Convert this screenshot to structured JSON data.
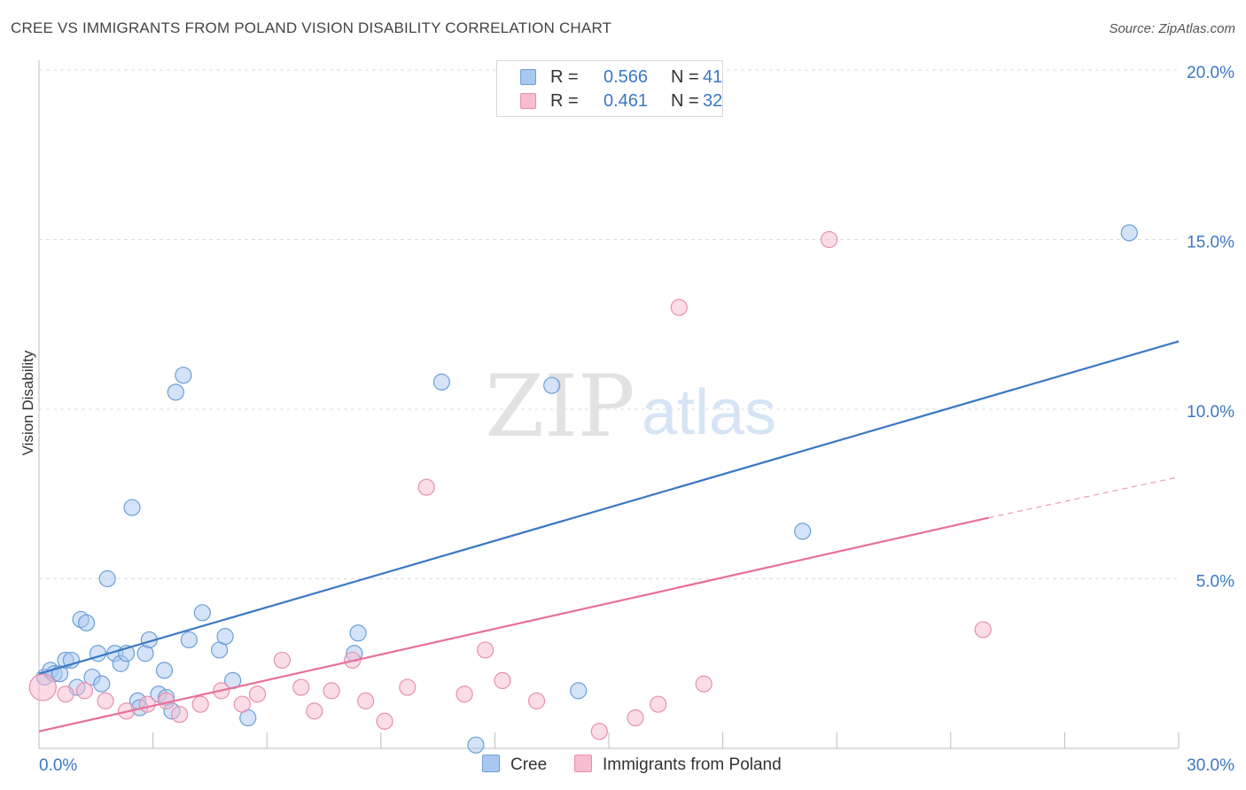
{
  "header": {
    "title": "CREE VS IMMIGRANTS FROM POLAND VISION DISABILITY CORRELATION CHART",
    "source": "Source: ZipAtlas.com"
  },
  "legend": {
    "series": [
      {
        "name": "Cree",
        "r_label": "R =",
        "r_value": "0.566",
        "n_label": "N =",
        "n_value": "41",
        "color": "#a9c8f0",
        "edge": "#6a9fd8"
      },
      {
        "name": "Immigrants from Poland",
        "r_label": "R =",
        "r_value": "0.461",
        "n_label": "N =",
        "n_value": "32",
        "color": "#f7bcd0",
        "edge": "#e88fae"
      }
    ]
  },
  "watermark": {
    "zip": "ZIP",
    "atlas": "atlas"
  },
  "chart_data": {
    "type": "scatter",
    "title": "CREE VS IMMIGRANTS FROM POLAND VISION DISABILITY CORRELATION CHART",
    "xlabel": "",
    "ylabel": "Vision Disability",
    "xlim": [
      0,
      30
    ],
    "ylim": [
      0,
      20
    ],
    "x_tick_labels": [
      "0.0%",
      "30.0%"
    ],
    "y_ticks": [
      5,
      10,
      15,
      20
    ],
    "y_tick_labels": [
      "5.0%",
      "10.0%",
      "15.0%",
      "20.0%"
    ],
    "grid": true,
    "legend_position": "top-center",
    "series": [
      {
        "name": "Cree",
        "color": "#3b78c3",
        "fill": "#a9c8f0",
        "points": [
          [
            0.15,
            2.1
          ],
          [
            0.3,
            2.3
          ],
          [
            0.4,
            2.2
          ],
          [
            0.55,
            2.2
          ],
          [
            0.7,
            2.6
          ],
          [
            0.85,
            2.6
          ],
          [
            1.0,
            1.8
          ],
          [
            1.1,
            3.8
          ],
          [
            1.25,
            3.7
          ],
          [
            1.4,
            2.1
          ],
          [
            1.55,
            2.8
          ],
          [
            1.65,
            1.9
          ],
          [
            1.8,
            5.0
          ],
          [
            2.0,
            2.8
          ],
          [
            2.15,
            2.5
          ],
          [
            2.3,
            2.8
          ],
          [
            2.45,
            7.1
          ],
          [
            2.6,
            1.4
          ],
          [
            2.65,
            1.2
          ],
          [
            2.8,
            2.8
          ],
          [
            2.9,
            3.2
          ],
          [
            3.15,
            1.6
          ],
          [
            3.3,
            2.3
          ],
          [
            3.35,
            1.5
          ],
          [
            3.5,
            1.1
          ],
          [
            3.6,
            10.5
          ],
          [
            3.8,
            11.0
          ],
          [
            3.95,
            3.2
          ],
          [
            4.3,
            4.0
          ],
          [
            4.75,
            2.9
          ],
          [
            4.9,
            3.3
          ],
          [
            5.1,
            2.0
          ],
          [
            5.5,
            0.9
          ],
          [
            8.3,
            2.8
          ],
          [
            8.4,
            3.4
          ],
          [
            10.6,
            10.8
          ],
          [
            11.5,
            0.1
          ],
          [
            13.5,
            10.7
          ],
          [
            14.2,
            1.7
          ],
          [
            20.1,
            6.4
          ],
          [
            28.7,
            15.2
          ]
        ],
        "trend": {
          "x": [
            0,
            30
          ],
          "y": [
            2.2,
            12.0
          ]
        }
      },
      {
        "name": "Immigrants from Poland",
        "color": "#e8709a",
        "fill": "#f7bcd0",
        "points": [
          [
            0.1,
            1.8
          ],
          [
            0.7,
            1.6
          ],
          [
            1.2,
            1.7
          ],
          [
            1.75,
            1.4
          ],
          [
            2.3,
            1.1
          ],
          [
            2.85,
            1.3
          ],
          [
            3.35,
            1.4
          ],
          [
            3.7,
            1.0
          ],
          [
            4.25,
            1.3
          ],
          [
            4.8,
            1.7
          ],
          [
            5.35,
            1.3
          ],
          [
            5.75,
            1.6
          ],
          [
            6.4,
            2.6
          ],
          [
            6.9,
            1.8
          ],
          [
            7.25,
            1.1
          ],
          [
            7.7,
            1.7
          ],
          [
            8.25,
            2.6
          ],
          [
            8.6,
            1.4
          ],
          [
            9.1,
            0.8
          ],
          [
            9.7,
            1.8
          ],
          [
            10.2,
            7.7
          ],
          [
            11.2,
            1.6
          ],
          [
            11.75,
            2.9
          ],
          [
            12.2,
            2.0
          ],
          [
            13.1,
            1.4
          ],
          [
            14.75,
            0.5
          ],
          [
            15.7,
            0.9
          ],
          [
            16.3,
            1.3
          ],
          [
            16.85,
            13.0
          ],
          [
            17.5,
            1.9
          ],
          [
            20.8,
            15.0
          ],
          [
            24.85,
            3.5
          ]
        ],
        "trend": {
          "x": [
            0,
            25
          ],
          "y": [
            0.5,
            6.8
          ]
        },
        "trend_extension": {
          "x": [
            25,
            30
          ],
          "y": [
            6.8,
            8.0
          ]
        }
      }
    ]
  }
}
